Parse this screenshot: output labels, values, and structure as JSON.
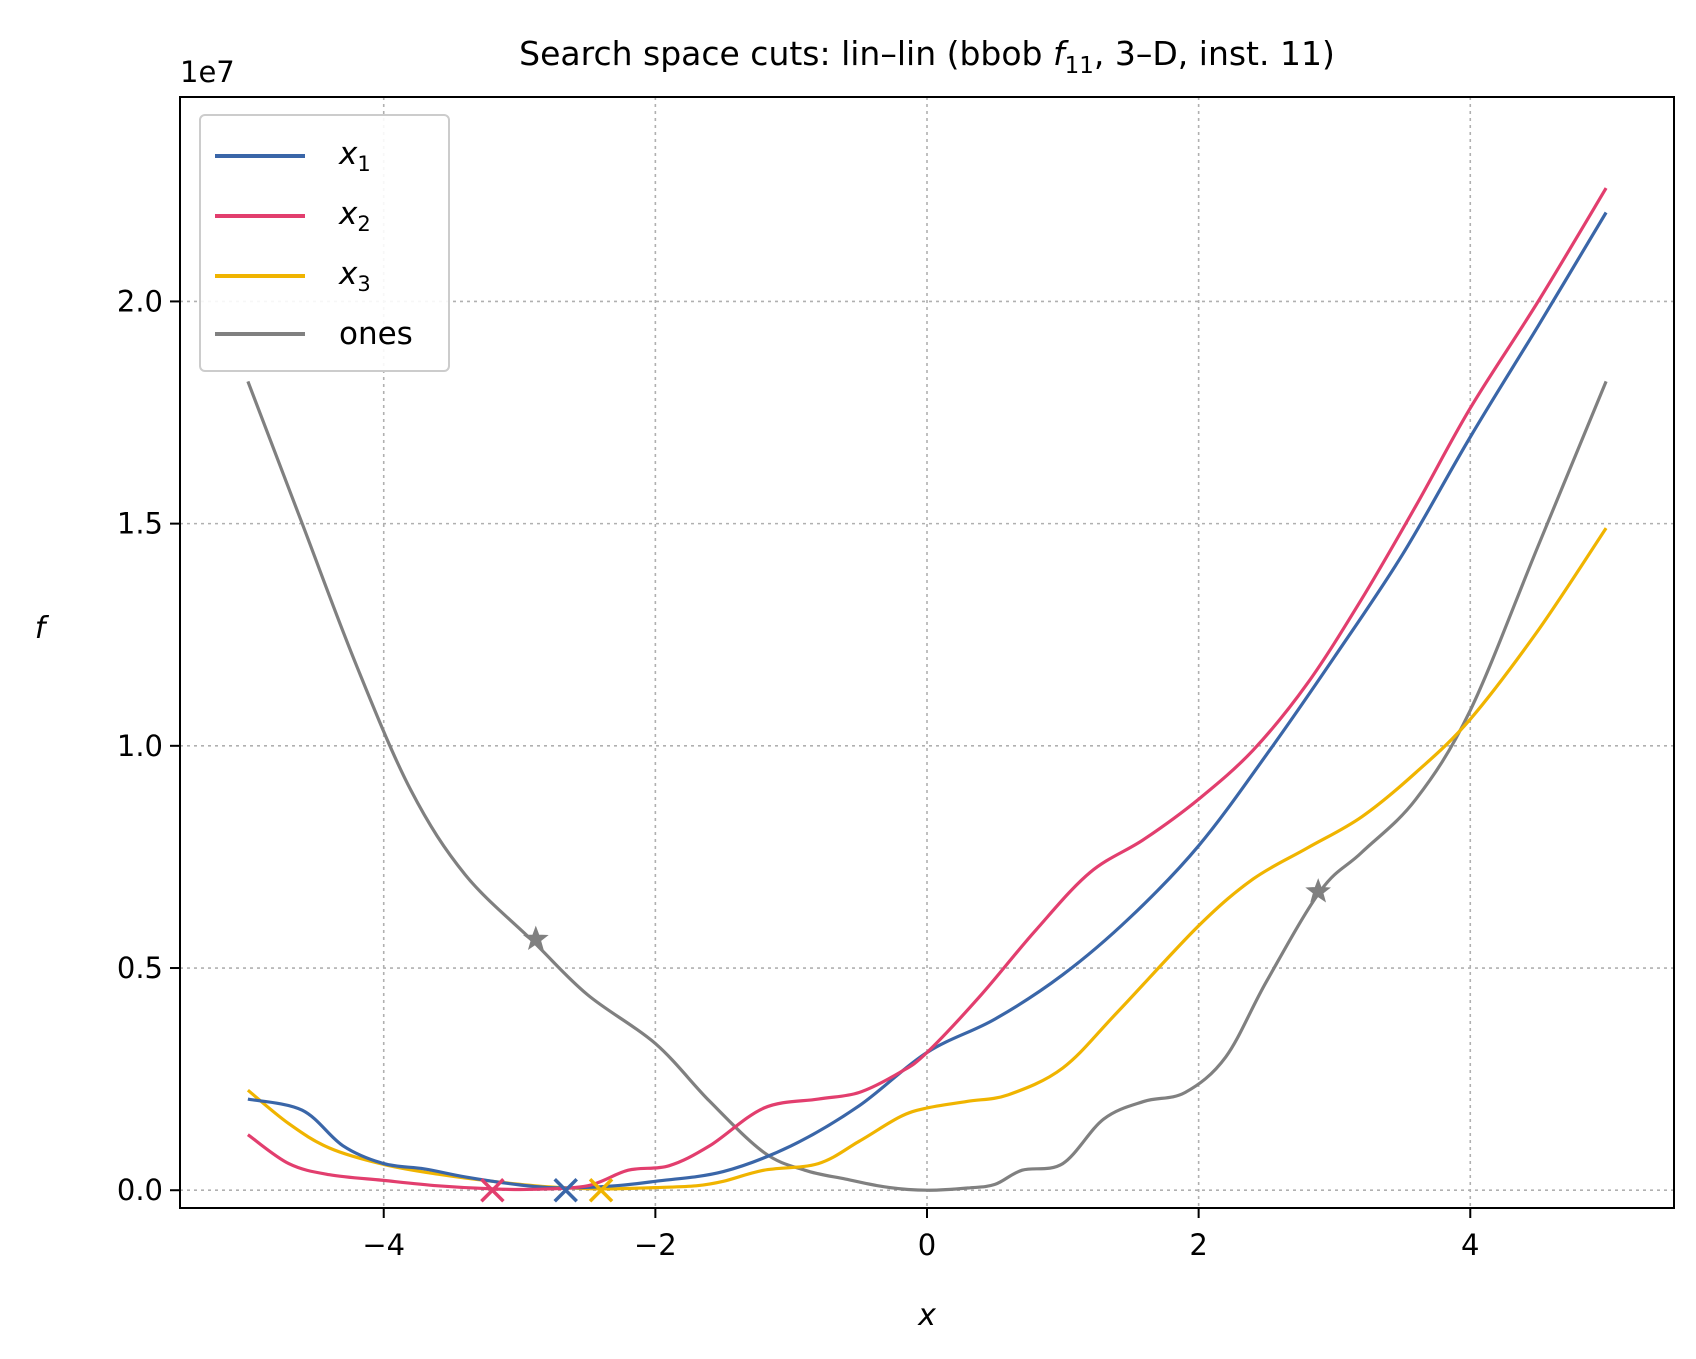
{
  "chart_data": {
    "type": "line",
    "title": "Search space cuts: lin–lin (bbob f11, 3–D, inst. 11)",
    "title_parts": {
      "prefix": "Search space cuts: lin–lin (bbob ",
      "f": "f",
      "sub": "11",
      "suffix": ", 3–D, inst. 11)"
    },
    "xlabel": "x",
    "ylabel": "f",
    "y_offset_label": "1e7",
    "xlim": [
      -5.5,
      5.5
    ],
    "ylim": [
      -0.04,
      2.46
    ],
    "y_scale_note": "values in units of 1e7",
    "xticks": [
      -4,
      -2,
      0,
      2,
      4
    ],
    "xtick_labels": [
      "−4",
      "−2",
      "0",
      "2",
      "4"
    ],
    "yticks": [
      0.0,
      0.5,
      1.0,
      1.5,
      2.0
    ],
    "ytick_labels": [
      "0.0",
      "0.5",
      "1.0",
      "1.5",
      "2.0"
    ],
    "grid": true,
    "legend_position": "upper-left",
    "series": [
      {
        "name": "x1",
        "label_var": "x",
        "label_sub": "1",
        "color": "#3a66a8",
        "points": [
          [
            -5.0,
            0.205
          ],
          [
            -4.6,
            0.18
          ],
          [
            -4.3,
            0.1
          ],
          [
            -4.0,
            0.06
          ],
          [
            -3.7,
            0.048
          ],
          [
            -3.4,
            0.03
          ],
          [
            -3.0,
            0.012
          ],
          [
            -2.7,
            0.005
          ],
          [
            -2.3,
            0.01
          ],
          [
            -2.0,
            0.02
          ],
          [
            -1.5,
            0.042
          ],
          [
            -1.0,
            0.1
          ],
          [
            -0.5,
            0.19
          ],
          [
            0.0,
            0.31
          ],
          [
            0.5,
            0.385
          ],
          [
            1.0,
            0.485
          ],
          [
            1.5,
            0.615
          ],
          [
            2.0,
            0.775
          ],
          [
            2.5,
            0.98
          ],
          [
            3.0,
            1.2
          ],
          [
            3.5,
            1.43
          ],
          [
            4.0,
            1.695
          ],
          [
            4.5,
            1.945
          ],
          [
            5.0,
            2.2
          ]
        ],
        "min_marker": {
          "x": -2.66,
          "y": 0.0,
          "symbol": "x"
        }
      },
      {
        "name": "x2",
        "label_var": "x",
        "label_sub": "2",
        "color": "#e23e6e",
        "points": [
          [
            -5.0,
            0.125
          ],
          [
            -4.7,
            0.06
          ],
          [
            -4.4,
            0.035
          ],
          [
            -4.0,
            0.022
          ],
          [
            -3.6,
            0.01
          ],
          [
            -3.2,
            0.003
          ],
          [
            -2.9,
            0.002
          ],
          [
            -2.5,
            0.01
          ],
          [
            -2.2,
            0.045
          ],
          [
            -1.9,
            0.055
          ],
          [
            -1.6,
            0.1
          ],
          [
            -1.2,
            0.185
          ],
          [
            -0.8,
            0.205
          ],
          [
            -0.5,
            0.22
          ],
          [
            -0.2,
            0.265
          ],
          [
            0.0,
            0.31
          ],
          [
            0.4,
            0.44
          ],
          [
            0.8,
            0.585
          ],
          [
            1.2,
            0.715
          ],
          [
            1.6,
            0.79
          ],
          [
            2.0,
            0.88
          ],
          [
            2.4,
            0.99
          ],
          [
            2.8,
            1.14
          ],
          [
            3.2,
            1.33
          ],
          [
            3.6,
            1.54
          ],
          [
            4.0,
            1.76
          ],
          [
            4.5,
            2.0
          ],
          [
            5.0,
            2.255
          ]
        ],
        "min_marker": {
          "x": -3.2,
          "y": 0.0,
          "symbol": "x"
        }
      },
      {
        "name": "x3",
        "label_var": "x",
        "label_sub": "3",
        "color": "#f0b400",
        "points": [
          [
            -5.0,
            0.225
          ],
          [
            -4.7,
            0.15
          ],
          [
            -4.4,
            0.095
          ],
          [
            -4.0,
            0.058
          ],
          [
            -3.6,
            0.036
          ],
          [
            -3.2,
            0.02
          ],
          [
            -2.8,
            0.008
          ],
          [
            -2.4,
            0.003
          ],
          [
            -2.0,
            0.006
          ],
          [
            -1.7,
            0.01
          ],
          [
            -1.5,
            0.02
          ],
          [
            -1.2,
            0.045
          ],
          [
            -0.8,
            0.06
          ],
          [
            -0.5,
            0.11
          ],
          [
            -0.2,
            0.165
          ],
          [
            0.0,
            0.185
          ],
          [
            0.3,
            0.2
          ],
          [
            0.6,
            0.215
          ],
          [
            1.0,
            0.275
          ],
          [
            1.4,
            0.4
          ],
          [
            2.0,
            0.595
          ],
          [
            2.4,
            0.7
          ],
          [
            2.8,
            0.77
          ],
          [
            3.2,
            0.84
          ],
          [
            3.6,
            0.94
          ],
          [
            4.0,
            1.06
          ],
          [
            4.5,
            1.26
          ],
          [
            5.0,
            1.49
          ]
        ],
        "min_marker": {
          "x": -2.4,
          "y": 0.0,
          "symbol": "x"
        }
      },
      {
        "name": "ones",
        "color": "#808080",
        "points": [
          [
            -5.0,
            1.82
          ],
          [
            -4.6,
            1.5
          ],
          [
            -4.2,
            1.18
          ],
          [
            -3.8,
            0.9
          ],
          [
            -3.4,
            0.71
          ],
          [
            -2.9,
            0.56
          ],
          [
            -2.5,
            0.44
          ],
          [
            -2.0,
            0.33
          ],
          [
            -1.6,
            0.2
          ],
          [
            -1.2,
            0.085
          ],
          [
            -0.9,
            0.045
          ],
          [
            -0.6,
            0.025
          ],
          [
            -0.3,
            0.007
          ],
          [
            0.0,
            0.0
          ],
          [
            0.3,
            0.005
          ],
          [
            0.5,
            0.013
          ],
          [
            0.7,
            0.045
          ],
          [
            1.0,
            0.06
          ],
          [
            1.3,
            0.16
          ],
          [
            1.6,
            0.2
          ],
          [
            1.9,
            0.22
          ],
          [
            2.2,
            0.3
          ],
          [
            2.5,
            0.47
          ],
          [
            2.9,
            0.675
          ],
          [
            3.2,
            0.76
          ],
          [
            3.6,
            0.88
          ],
          [
            4.0,
            1.08
          ],
          [
            4.5,
            1.45
          ],
          [
            5.0,
            1.82
          ]
        ],
        "markers": [
          {
            "x": -2.88,
            "y": 0.565,
            "symbol": "star"
          },
          {
            "x": 2.88,
            "y": 0.672,
            "symbol": "star"
          }
        ]
      }
    ]
  }
}
